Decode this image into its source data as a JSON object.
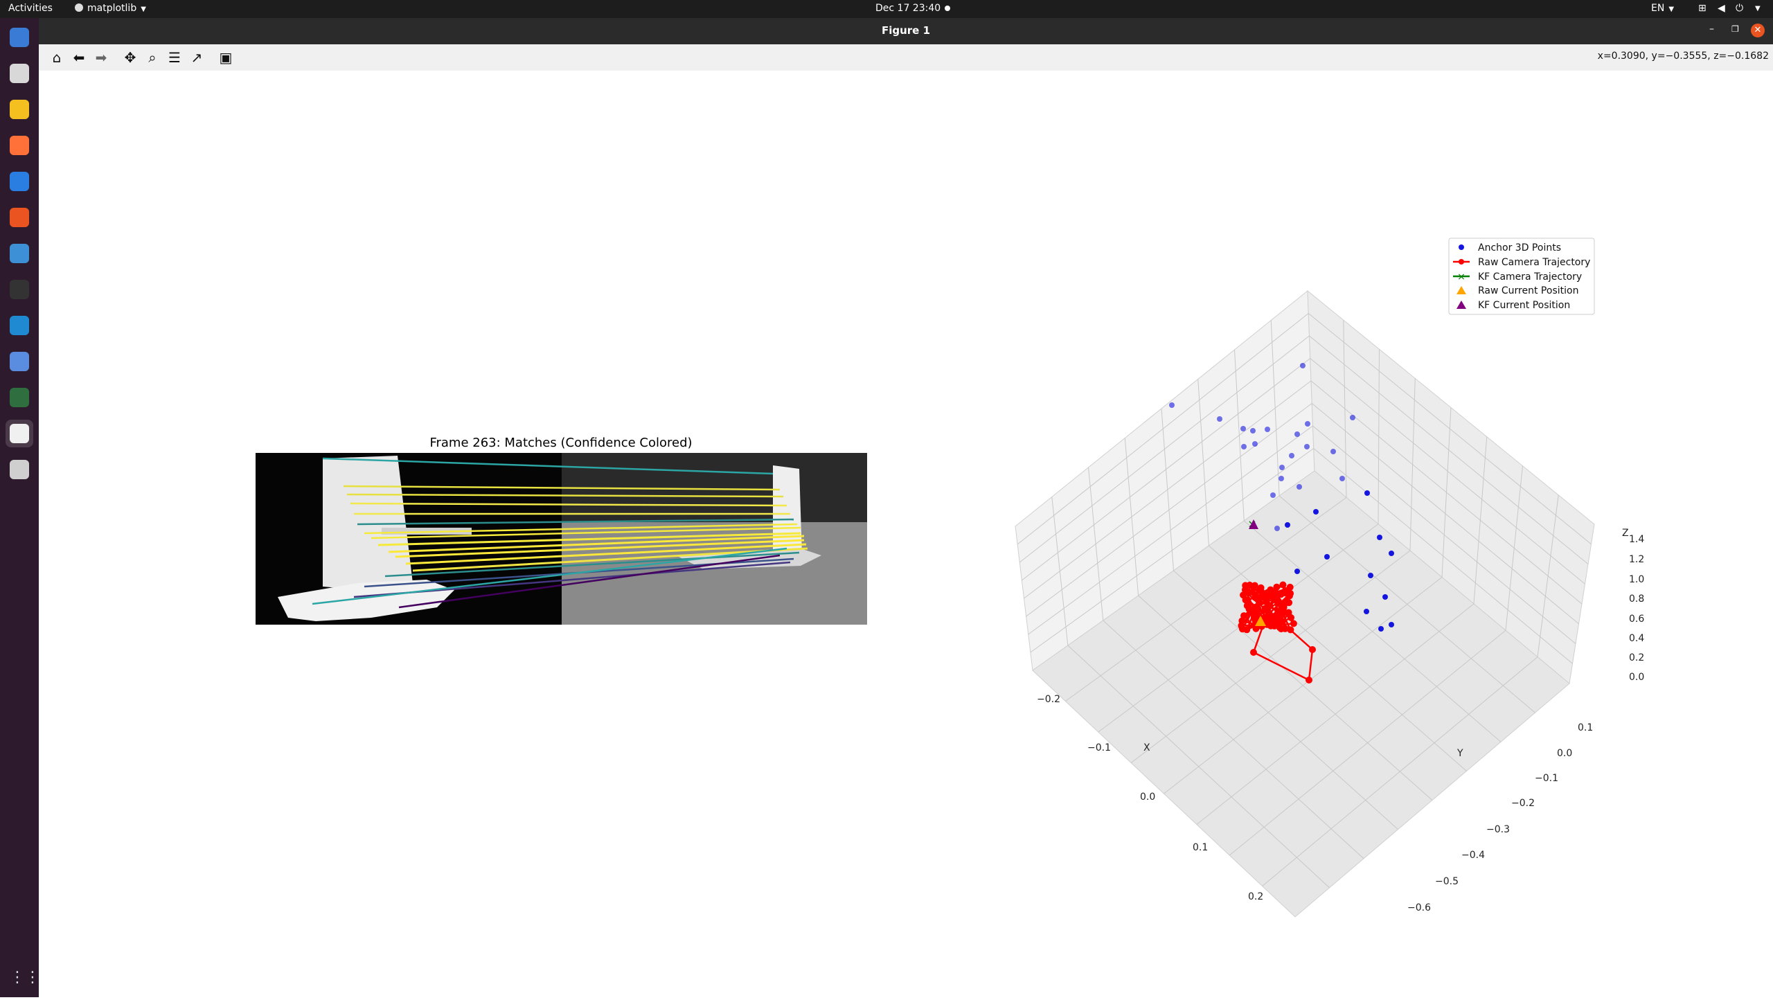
{
  "topbar": {
    "activities": "Activities",
    "app_name": "matplotlib",
    "datetime": "Dec 17  23:40",
    "language": "EN"
  },
  "window": {
    "title": "Figure 1"
  },
  "toolbar": {
    "coords": "x=0.3090, y=−0.3555, z=−0.1682",
    "buttons": [
      "home-icon",
      "back-icon",
      "forward-icon",
      "pan-icon",
      "zoom-icon",
      "configure-icon",
      "edit-axis-icon",
      "save-icon"
    ]
  },
  "dock": {
    "items": [
      "thunderbird-icon",
      "files-icon",
      "rhythmbox-icon",
      "firefox-icon",
      "writer-icon",
      "app-center-icon",
      "help-icon",
      "terminal-icon",
      "vscode-icon",
      "screenshot-icon",
      "globe-icon",
      "matplotlib-icon",
      "disk-icon",
      "show-apps-icon"
    ]
  },
  "colors": {
    "anchor": "#1515e0",
    "raw": "#ff0000",
    "kf": "#008000",
    "raw_current": "#ffa500",
    "kf_current": "#800080"
  },
  "figure": {
    "image_title": "Frame 263: Matches (Confidence Colored)",
    "plot3d": {
      "legend": [
        "Anchor 3D Points",
        "Raw Camera Trajectory",
        "KF Camera Trajectory",
        "Raw Current Position",
        "KF Current Position"
      ],
      "x_label": "X",
      "y_label": "Y",
      "z_label": "Z",
      "x_ticks": [
        "−0.2",
        "−0.1",
        "0.0",
        "0.1",
        "0.2"
      ],
      "y_ticks": [
        "0.1",
        "0.0",
        "−0.1",
        "−0.2",
        "−0.3",
        "−0.4",
        "−0.5",
        "−0.6"
      ],
      "z_ticks": [
        "1.4",
        "1.2",
        "1.0",
        "0.8",
        "0.6",
        "0.4",
        "0.2",
        "0.0"
      ]
    }
  }
}
